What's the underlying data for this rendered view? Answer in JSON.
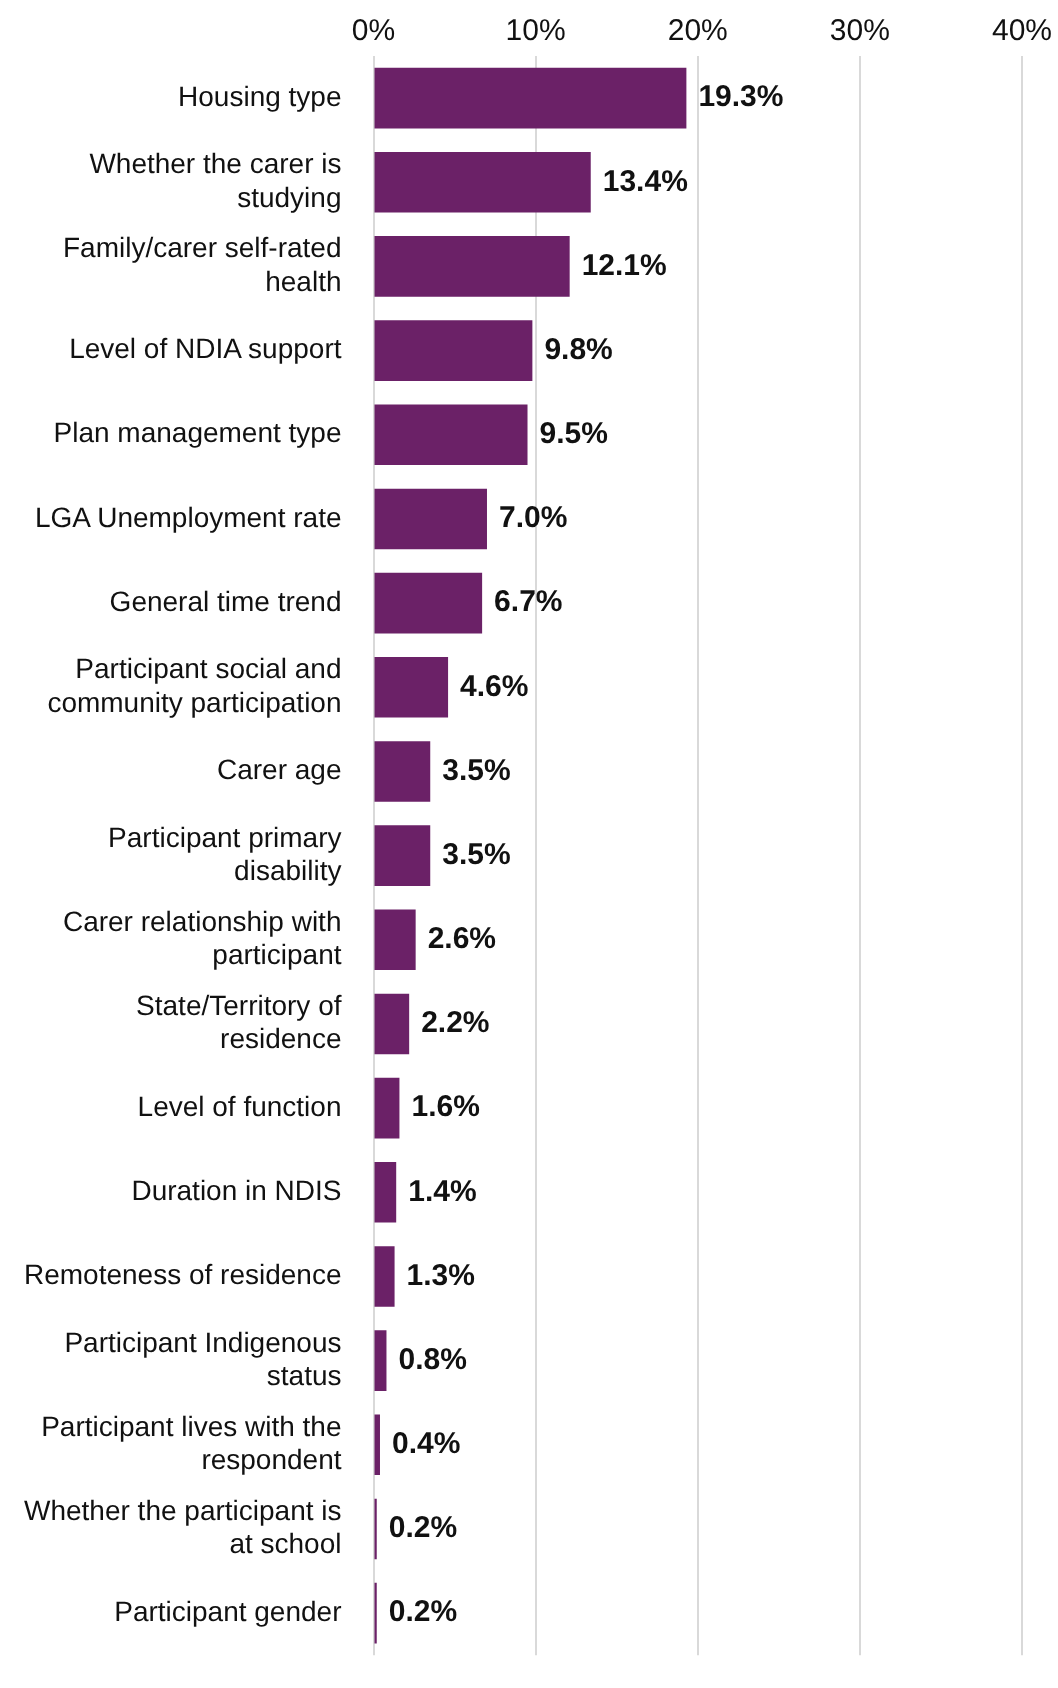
{
  "chart_data": {
    "type": "bar",
    "orientation": "horizontal",
    "color": "#6b2167",
    "categories": [
      "Housing type",
      "Whether the carer is studying",
      "Family/carer self-rated health",
      "Level of NDIA support",
      "Plan management type",
      "LGA Unemployment rate",
      "General time trend",
      "Participant social and community participation",
      "Carer age",
      "Participant primary disability",
      "Carer relationship with participant",
      "State/Territory of residence",
      "Level of function",
      "Duration in NDIS",
      "Remoteness of residence",
      "Participant Indigenous status",
      "Participant lives with the respondent",
      "Whether the participant is at school",
      "Participant gender"
    ],
    "values": [
      19.3,
      13.4,
      12.1,
      9.8,
      9.5,
      7.0,
      6.7,
      4.6,
      3.5,
      3.5,
      2.6,
      2.2,
      1.6,
      1.4,
      1.3,
      0.8,
      0.4,
      0.2,
      0.2
    ],
    "value_labels": [
      "19.3%",
      "13.4%",
      "12.1%",
      "9.8%",
      "9.5%",
      "7.0%",
      "6.7%",
      "4.6%",
      "3.5%",
      "3.5%",
      "2.6%",
      "2.2%",
      "1.6%",
      "1.4%",
      "1.3%",
      "0.8%",
      "0.4%",
      "0.2%",
      "0.2%"
    ],
    "xlim": [
      0,
      40
    ],
    "xticks": [
      {
        "value": 0,
        "label": "0%"
      },
      {
        "value": 10,
        "label": "10%"
      },
      {
        "value": 20,
        "label": "20%"
      },
      {
        "value": 30,
        "label": "30%"
      },
      {
        "value": 40,
        "label": "40%"
      }
    ],
    "grid": "x",
    "legend": false
  }
}
